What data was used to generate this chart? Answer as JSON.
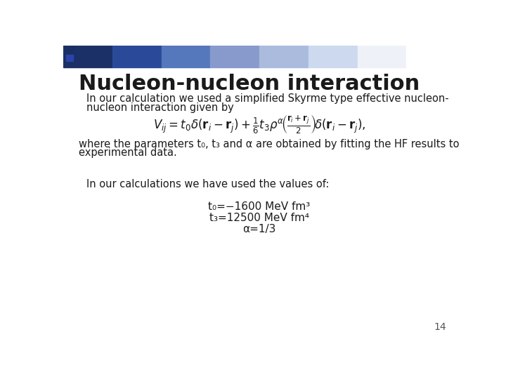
{
  "bg_color": "#ffffff",
  "title": "Nucleon-nucleon interaction",
  "title_color": "#1a1a1a",
  "title_fontsize": 22,
  "bullet1_text1": "In our calculation we used a simplified Skyrme type effective nucleon-",
  "bullet1_text2": "nucleon interaction given by",
  "where_text1": "where the parameters t₀, t₃ and α are obtained by fitting the HF results to",
  "where_text2": "experimental data.",
  "bullet2_text": "In our calculations we have used the values of:",
  "values_lines": [
    "t₀=−1600 MeV fm³",
    "t₃=12500 MeV fm⁴",
    "α=1/3"
  ],
  "page_number": "14",
  "square_color": "#1a3a6b",
  "text_color": "#1a1a1a",
  "body_fontsize": 10.5,
  "values_fontsize": 11,
  "formula_fontsize": 12,
  "header_colors": [
    "#1a3066",
    "#2a4a99",
    "#5577bb",
    "#8899cc",
    "#aabbdd",
    "#ccd9ee",
    "#eef2f8",
    "#ffffff"
  ],
  "dark_sq1": "#1a2e66",
  "dark_sq2": "#2a44aa"
}
